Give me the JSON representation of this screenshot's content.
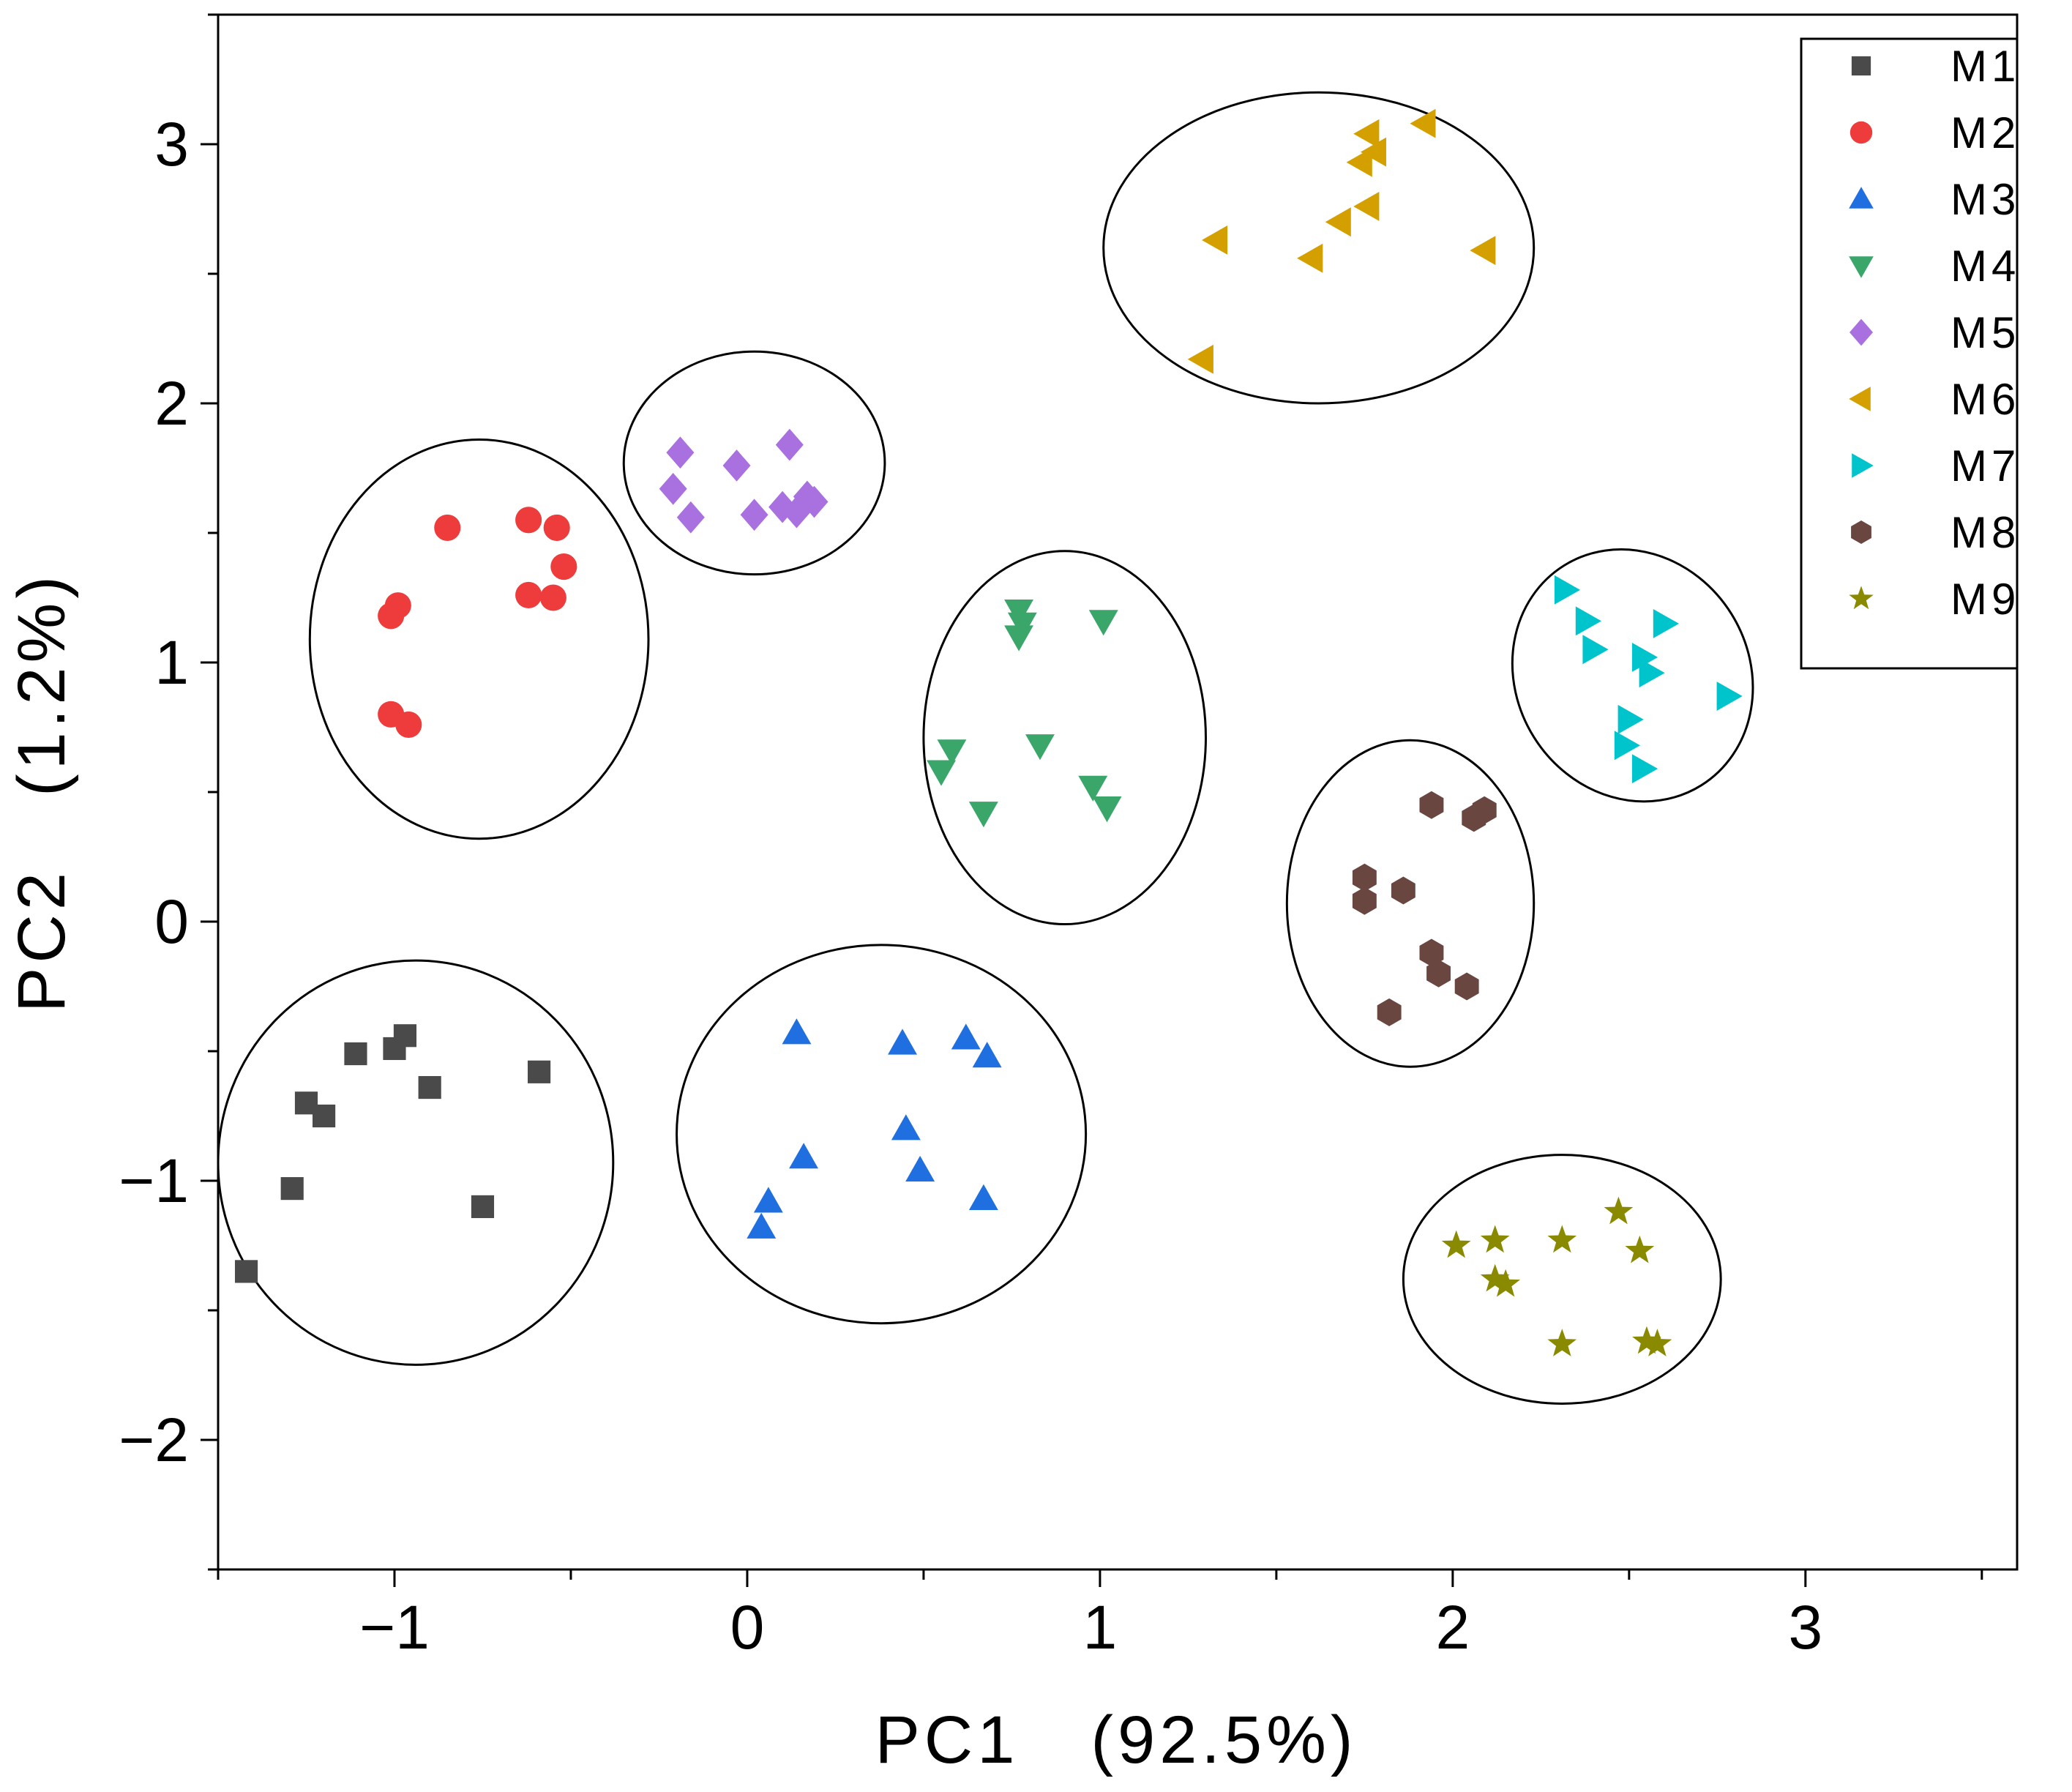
{
  "chart_data": {
    "type": "scatter",
    "title": "",
    "xlabel": "PC1　(92.5%)",
    "ylabel": "PC2　(1.2%)",
    "xlim": [
      -1.5,
      3.6
    ],
    "ylim": [
      -2.5,
      3.5
    ],
    "xticks": [
      -1,
      0,
      1,
      2,
      3
    ],
    "yticks": [
      -2,
      -1,
      0,
      1,
      2,
      3
    ],
    "x_tick_labels": [
      "−1",
      "0",
      "1",
      "2",
      "3"
    ],
    "y_tick_labels": [
      "−2",
      "−1",
      "0",
      "1",
      "2",
      "3"
    ],
    "grid": false,
    "legend_position": "top-right",
    "series": [
      {
        "name": "M1",
        "marker": "square",
        "color": "#4a4a4a",
        "ellipse": {
          "cx": -0.94,
          "cy": -0.93,
          "rx": 0.56,
          "ry": 0.78
        },
        "points": [
          [
            -1.42,
            -1.35
          ],
          [
            -1.29,
            -1.03
          ],
          [
            -1.25,
            -0.7
          ],
          [
            -1.2,
            -0.75
          ],
          [
            -1.11,
            -0.51
          ],
          [
            -1.0,
            -0.49
          ],
          [
            -0.97,
            -0.44
          ],
          [
            -0.9,
            -0.64
          ],
          [
            -0.75,
            -1.1
          ],
          [
            -0.59,
            -0.58
          ]
        ]
      },
      {
        "name": "M2",
        "marker": "circle",
        "color": "#ee3b3b",
        "ellipse": {
          "cx": -0.76,
          "cy": 1.09,
          "rx": 0.48,
          "ry": 0.77
        },
        "points": [
          [
            -1.01,
            0.8
          ],
          [
            -0.96,
            0.76
          ],
          [
            -1.01,
            1.18
          ],
          [
            -0.99,
            1.22
          ],
          [
            -0.85,
            1.52
          ],
          [
            -0.62,
            1.55
          ],
          [
            -0.54,
            1.52
          ],
          [
            -0.62,
            1.26
          ],
          [
            -0.55,
            1.25
          ],
          [
            -0.52,
            1.37
          ]
        ]
      },
      {
        "name": "M3",
        "marker": "triangle-up",
        "color": "#1f6fe0",
        "ellipse": {
          "cx": 0.38,
          "cy": -0.82,
          "rx": 0.58,
          "ry": 0.73
        },
        "points": [
          [
            0.04,
            -1.18
          ],
          [
            0.06,
            -1.08
          ],
          [
            0.14,
            -0.43
          ],
          [
            0.16,
            -0.91
          ],
          [
            0.44,
            -0.47
          ],
          [
            0.45,
            -0.8
          ],
          [
            0.49,
            -0.96
          ],
          [
            0.62,
            -0.45
          ],
          [
            0.68,
            -0.52
          ],
          [
            0.67,
            -1.07
          ]
        ]
      },
      {
        "name": "M4",
        "marker": "triangle-down",
        "color": "#3aa66a",
        "ellipse": {
          "cx": 0.9,
          "cy": 0.71,
          "rx": 0.4,
          "ry": 0.72
        },
        "points": [
          [
            0.55,
            0.58
          ],
          [
            0.58,
            0.66
          ],
          [
            0.67,
            0.42
          ],
          [
            0.77,
            1.2
          ],
          [
            0.77,
            1.1
          ],
          [
            0.78,
            1.15
          ],
          [
            0.83,
            0.68
          ],
          [
            0.98,
            0.52
          ],
          [
            1.02,
            0.44
          ],
          [
            1.01,
            1.16
          ]
        ]
      },
      {
        "name": "M5",
        "marker": "diamond",
        "color": "#a970e0",
        "ellipse": {
          "cx": 0.02,
          "cy": 1.77,
          "rx": 0.37,
          "ry": 0.43
        },
        "points": [
          [
            -0.19,
            1.81
          ],
          [
            -0.21,
            1.67
          ],
          [
            -0.16,
            1.56
          ],
          [
            -0.03,
            1.76
          ],
          [
            0.02,
            1.57
          ],
          [
            0.1,
            1.6
          ],
          [
            0.12,
            1.84
          ],
          [
            0.14,
            1.58
          ],
          [
            0.17,
            1.64
          ],
          [
            0.19,
            1.62
          ]
        ]
      },
      {
        "name": "M6",
        "marker": "triangle-left",
        "color": "#d4a000",
        "ellipse": {
          "cx": 1.62,
          "cy": 2.6,
          "rx": 0.61,
          "ry": 0.6
        },
        "points": [
          [
            1.29,
            2.17
          ],
          [
            1.33,
            2.63
          ],
          [
            1.6,
            2.56
          ],
          [
            1.68,
            2.7
          ],
          [
            1.76,
            2.76
          ],
          [
            1.76,
            3.04
          ],
          [
            1.74,
            2.93
          ],
          [
            1.78,
            2.97
          ],
          [
            1.92,
            3.08
          ],
          [
            2.09,
            2.59
          ]
        ]
      },
      {
        "name": "M7",
        "marker": "triangle-right",
        "color": "#00c4cc",
        "ellipse": {
          "cx": 2.51,
          "cy": 0.95,
          "rx": 0.33,
          "ry": 0.5,
          "rotate": -32
        },
        "points": [
          [
            2.32,
            1.28
          ],
          [
            2.38,
            1.16
          ],
          [
            2.4,
            1.05
          ],
          [
            2.5,
            0.78
          ],
          [
            2.49,
            0.68
          ],
          [
            2.54,
            0.59
          ],
          [
            2.54,
            1.02
          ],
          [
            2.56,
            0.96
          ],
          [
            2.6,
            1.15
          ],
          [
            2.78,
            0.87
          ]
        ]
      },
      {
        "name": "M8",
        "marker": "hexagon",
        "color": "#6a4640",
        "ellipse": {
          "cx": 1.88,
          "cy": 0.07,
          "rx": 0.35,
          "ry": 0.63
        },
        "points": [
          [
            1.75,
            0.17
          ],
          [
            1.75,
            0.08
          ],
          [
            1.82,
            -0.35
          ],
          [
            1.86,
            0.12
          ],
          [
            1.94,
            0.45
          ],
          [
            1.94,
            -0.12
          ],
          [
            1.96,
            -0.2
          ],
          [
            2.04,
            -0.25
          ],
          [
            2.06,
            0.4
          ],
          [
            2.09,
            0.43
          ]
        ]
      },
      {
        "name": "M9",
        "marker": "star",
        "color": "#8a8a00",
        "ellipse": {
          "cx": 2.31,
          "cy": -1.38,
          "rx": 0.45,
          "ry": 0.48
        },
        "points": [
          [
            2.01,
            -1.25
          ],
          [
            2.12,
            -1.23
          ],
          [
            2.12,
            -1.38
          ],
          [
            2.15,
            -1.4
          ],
          [
            2.31,
            -1.23
          ],
          [
            2.31,
            -1.63
          ],
          [
            2.47,
            -1.12
          ],
          [
            2.53,
            -1.27
          ],
          [
            2.55,
            -1.62
          ],
          [
            2.58,
            -1.63
          ]
        ]
      }
    ]
  }
}
